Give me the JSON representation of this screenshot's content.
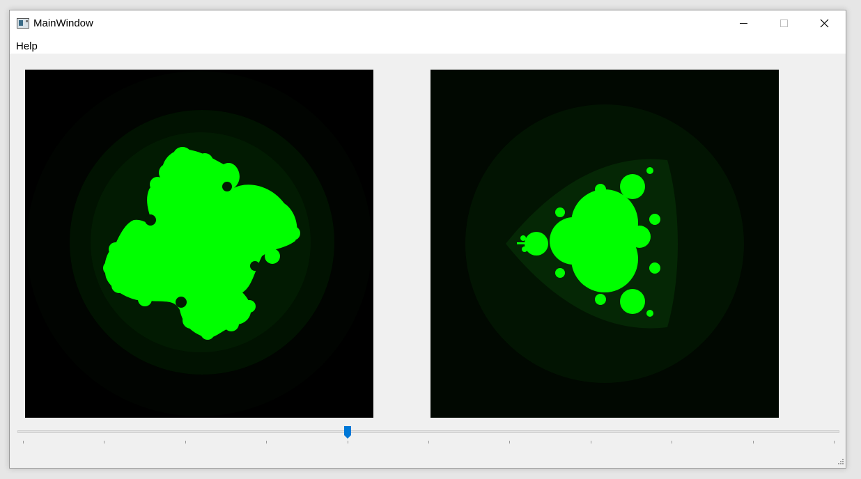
{
  "window": {
    "title": "MainWindow",
    "icon": "app-window-icon"
  },
  "menu": {
    "items": [
      {
        "label": "Help"
      }
    ]
  },
  "fractals": {
    "left": {
      "type": "julia-set",
      "color": "#00ff00"
    },
    "right": {
      "type": "mandelbrot-multibrot",
      "color": "#00ff00"
    }
  },
  "slider": {
    "value": 0.4,
    "tick_count": 11,
    "accent": "#0078d7"
  }
}
